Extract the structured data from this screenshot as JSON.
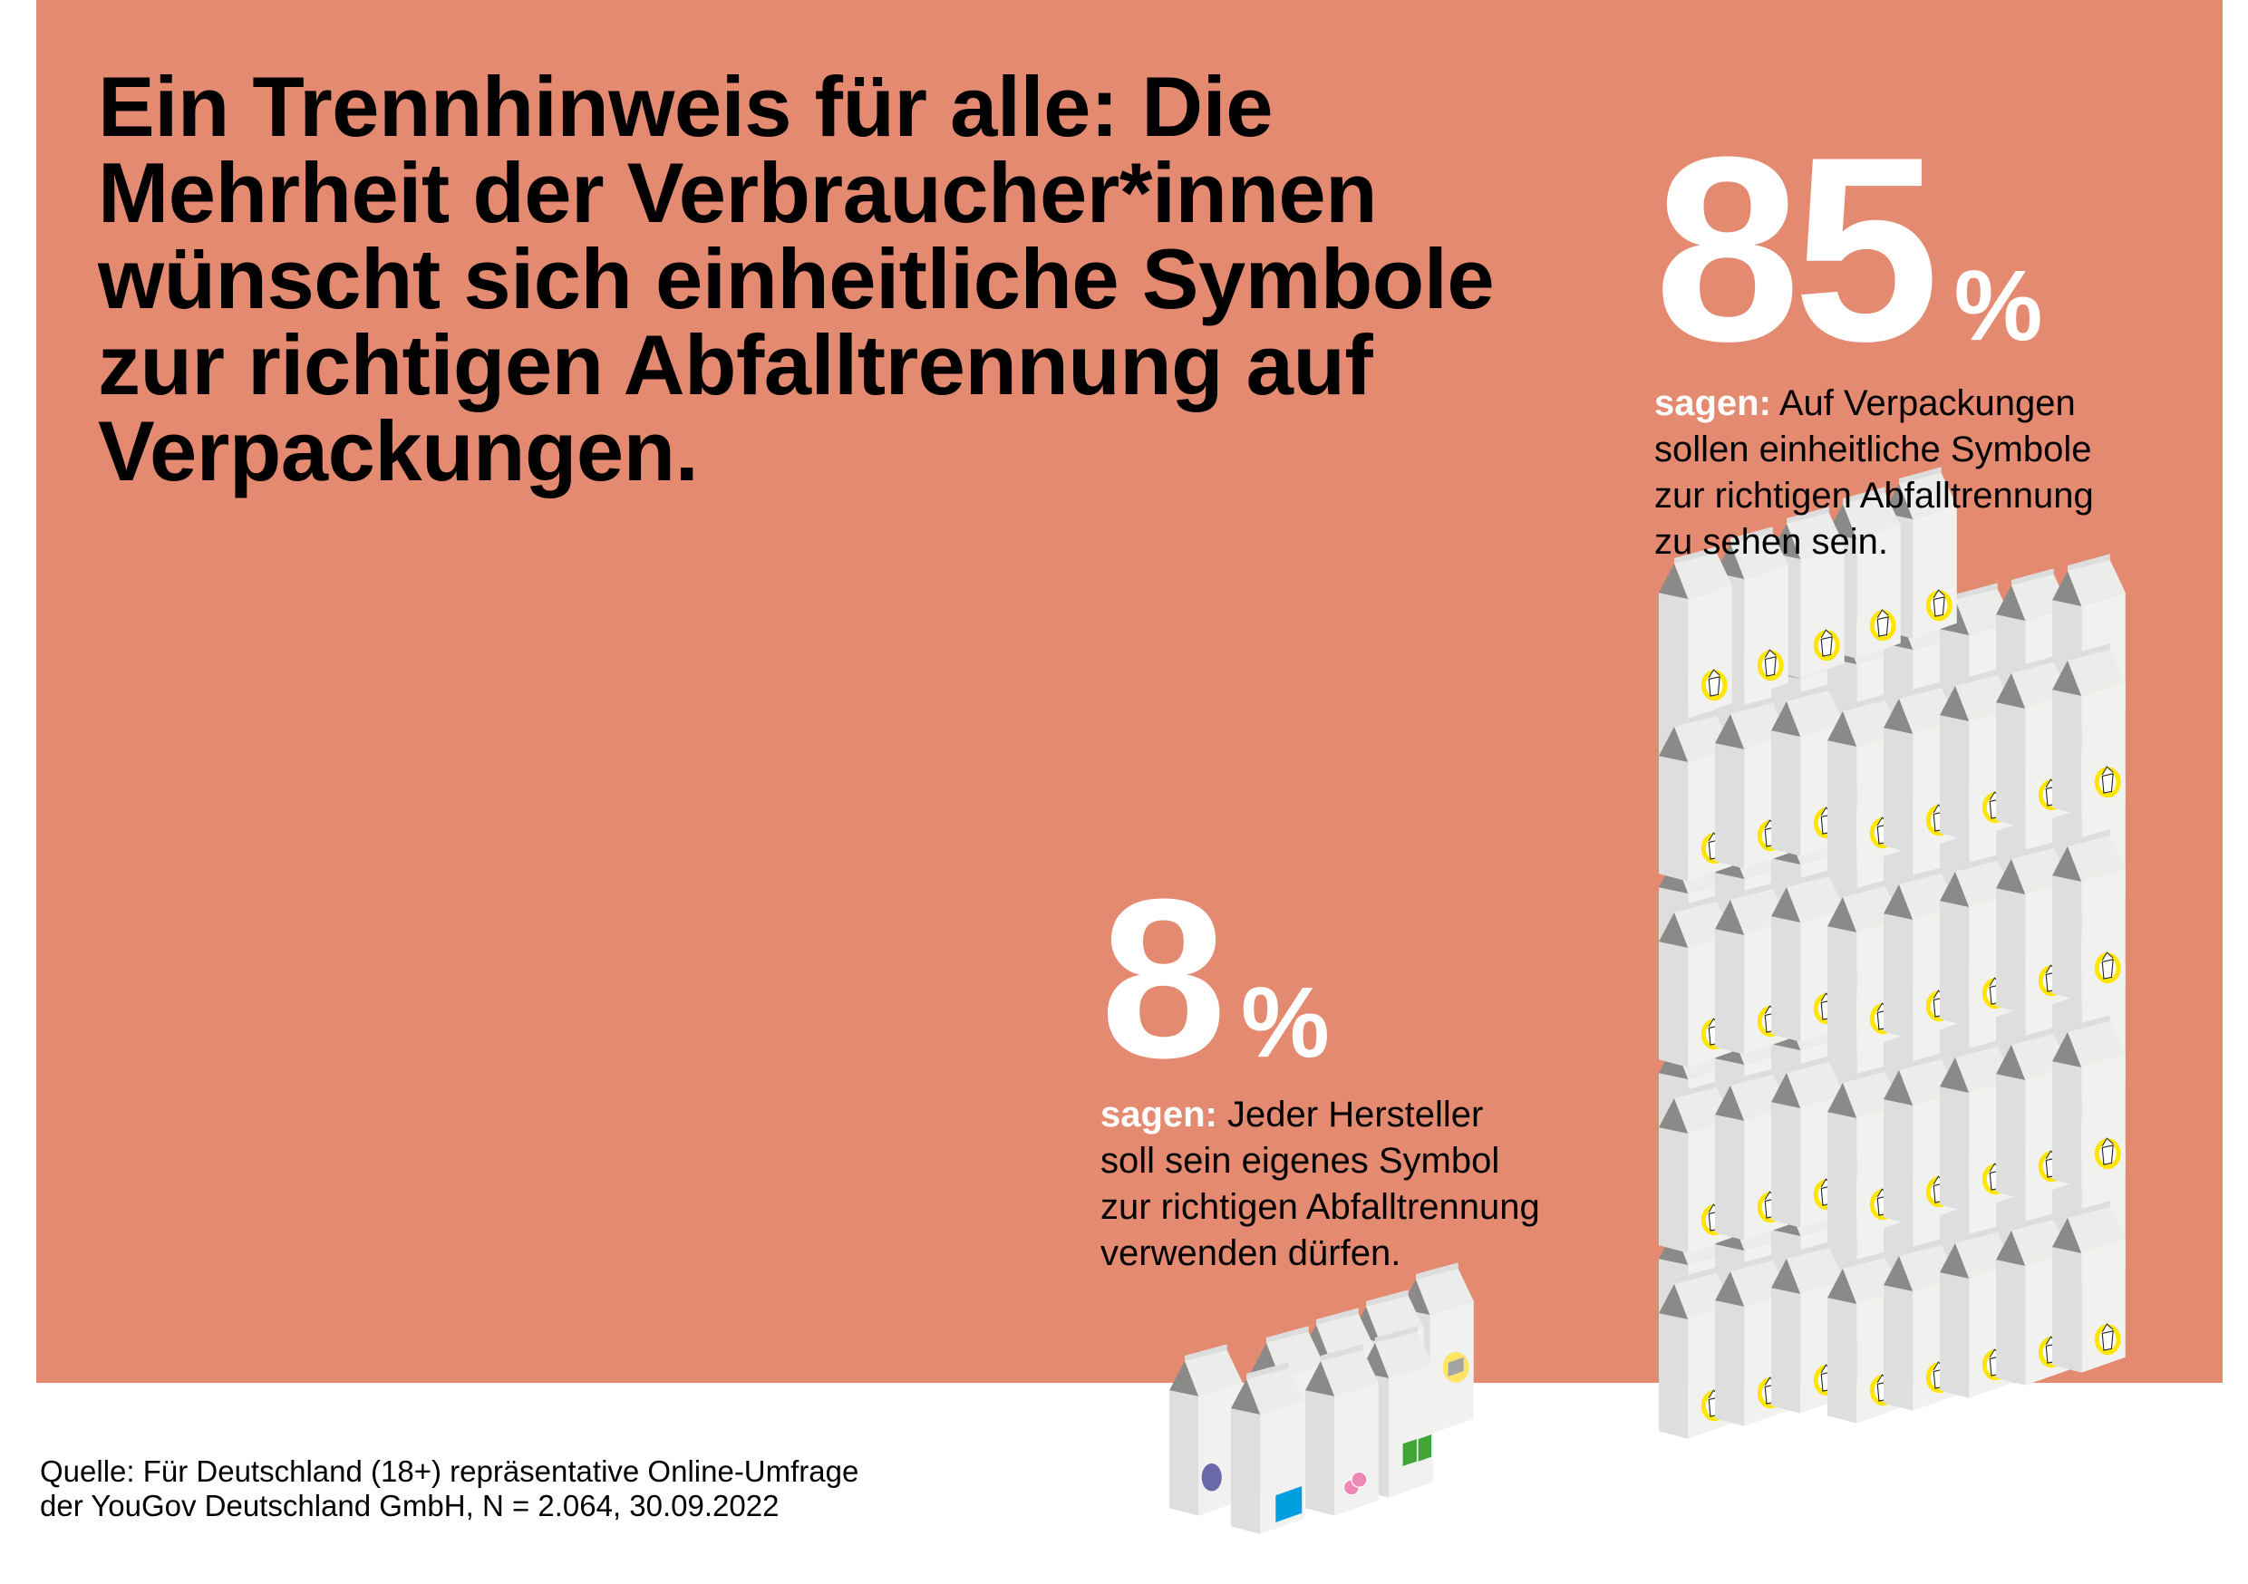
{
  "title_lines": [
    "Ein Trennhinweis für alle: Die",
    "Mehrheit der Verbraucher*innen",
    "wünscht sich einheitliche Symbole",
    "zur richtigen Abfalltrennung auf",
    "Verpackungen."
  ],
  "stats": [
    {
      "value": "85",
      "unit": "%",
      "lead": "sagen:",
      "lines": [
        " Auf Verpackungen",
        "sollen einheitliche Symbole",
        "zur richtigen Abfalltrennung",
        "zu sehen sein."
      ]
    },
    {
      "value": "8",
      "unit": "%",
      "lead": "sagen:",
      "lines": [
        " Jeder Hersteller",
        "soll sein eigenes Symbol",
        "zur richtigen Abfalltrennung",
        "verwenden dürfen."
      ]
    }
  ],
  "source_lines": [
    "Quelle: Für Deutschland (18+) repräsentative Online-Umfrage",
    "der YouGov Deutschland GmbH, N = 2.064, 30.09.2022"
  ],
  "colors": {
    "background": "#E38A70",
    "unified_symbol": "#FFE600",
    "brand_symbols": [
      "#6A68A8",
      "#00A0E0",
      "#EE88B4",
      "#3FA535",
      "#FFE566"
    ]
  }
}
